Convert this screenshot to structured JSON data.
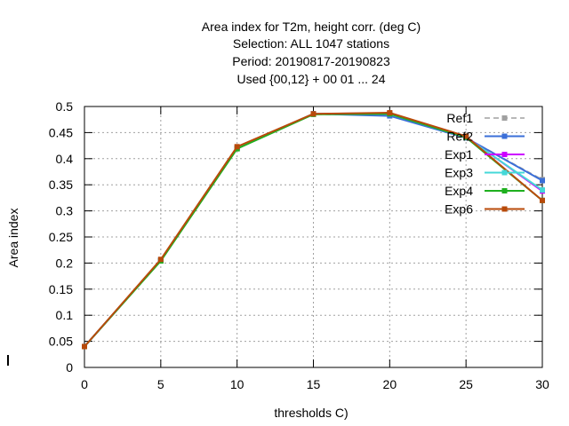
{
  "chart_data": {
    "type": "line",
    "title_lines": [
      "Area index  for T2m, height corr. (deg C)",
      "Selection: ALL    1047 stations",
      "Period: 20190817-20190823",
      "Used {00,12} + 00 01 ... 24"
    ],
    "xlabel": "thresholds C)",
    "ylabel": "Area index",
    "xlim": [
      0,
      30
    ],
    "ylim": [
      0,
      0.5
    ],
    "xticks": [
      0,
      5,
      10,
      15,
      20,
      25,
      30
    ],
    "yticks": [
      0,
      0.05,
      0.1,
      0.15,
      0.2,
      0.25,
      0.3,
      0.35,
      0.4,
      0.45,
      0.5
    ],
    "grid": true,
    "legend_position": "top-right",
    "x": [
      0,
      5,
      10,
      15,
      20,
      25,
      30
    ],
    "series": [
      {
        "name": "Ref1",
        "color": "#a0a0a0",
        "dashed": true,
        "values": [
          0.04,
          0.205,
          0.42,
          0.485,
          0.484,
          0.44,
          0.36
        ]
      },
      {
        "name": "Ref2",
        "color": "#3b6fd8",
        "dashed": false,
        "values": [
          0.04,
          0.206,
          0.421,
          0.486,
          0.482,
          0.44,
          0.358
        ]
      },
      {
        "name": "Exp1",
        "color": "#cc00ff",
        "dashed": false,
        "values": [
          0.04,
          0.205,
          0.42,
          0.486,
          0.487,
          0.442,
          0.338
        ]
      },
      {
        "name": "Exp3",
        "color": "#44d8d8",
        "dashed": false,
        "values": [
          0.04,
          0.205,
          0.42,
          0.486,
          0.486,
          0.441,
          0.34
        ]
      },
      {
        "name": "Exp4",
        "color": "#1fb01f",
        "dashed": false,
        "values": [
          0.04,
          0.204,
          0.419,
          0.485,
          0.486,
          0.441,
          0.32
        ]
      },
      {
        "name": "Exp6",
        "color": "#b84a0a",
        "dashed": false,
        "values": [
          0.04,
          0.207,
          0.423,
          0.486,
          0.488,
          0.443,
          0.32
        ]
      }
    ]
  }
}
